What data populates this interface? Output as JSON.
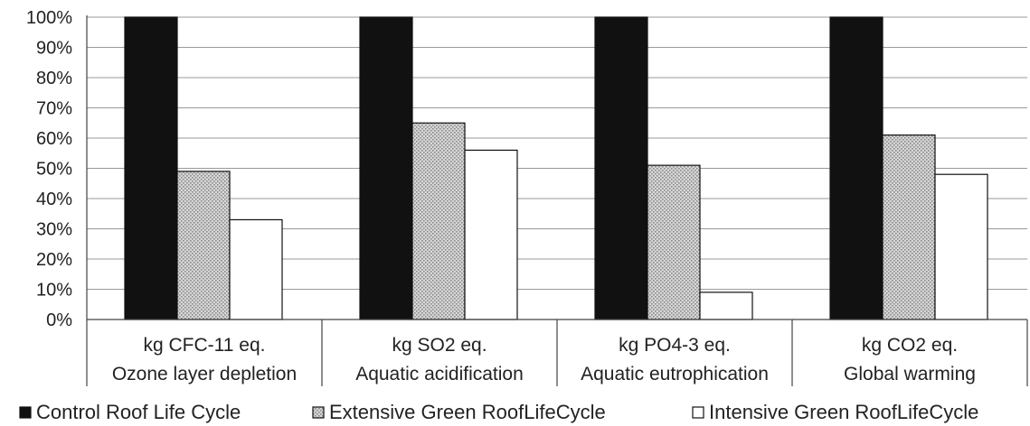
{
  "chart_data": {
    "type": "bar",
    "ylim": [
      0,
      100
    ],
    "ytick_step": 10,
    "ytick_suffix": "%",
    "grid": true,
    "legend_position": "bottom",
    "categories": [
      [
        "kg CFC-11 eq.",
        "Ozone layer depletion"
      ],
      [
        "kg SO2 eq.",
        "Aquatic acidification"
      ],
      [
        "kg PO4-3 eq.",
        "Aquatic eutrophication"
      ],
      [
        "kg CO2 eq.",
        "Global warming"
      ]
    ],
    "series": [
      {
        "name": "Control Roof Life Cycle",
        "values": [
          100,
          100,
          100,
          100
        ],
        "fill": "#111111",
        "pattern": "solid"
      },
      {
        "name": "Extensive Green RoofLifeCycle",
        "values": [
          49,
          65,
          51,
          61
        ],
        "fill": "#cfcfcf",
        "pattern": "dots"
      },
      {
        "name": "Intensive Green RoofLifeCycle",
        "values": [
          33,
          56,
          9,
          48
        ],
        "fill": "#ffffff",
        "pattern": "none"
      }
    ]
  }
}
